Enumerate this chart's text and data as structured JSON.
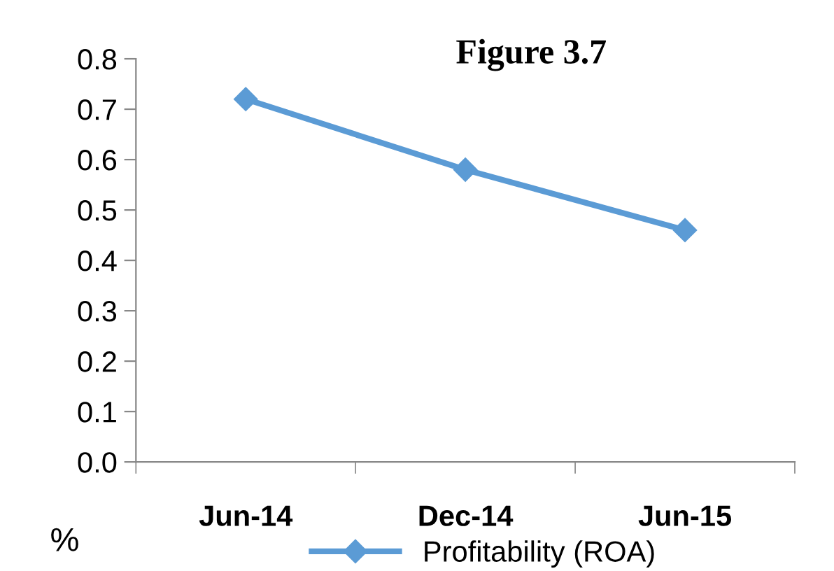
{
  "chart_data": {
    "type": "line",
    "title": "Figure 3.7",
    "ylabel": "%",
    "categories": [
      "Jun-14",
      "Dec-14",
      "Jun-15"
    ],
    "series": [
      {
        "name": "Profitability (ROA)",
        "color": "#5b9bd5",
        "values": [
          0.72,
          0.58,
          0.46
        ]
      }
    ],
    "ylim": [
      0,
      0.8
    ],
    "yticks": [
      {
        "value": 0,
        "label": "0.0"
      },
      0.1,
      0.2,
      0.3,
      0.4,
      0.5,
      0.6,
      0.7,
      0.8
    ],
    "marker": "diamond",
    "line_style": "solid",
    "grid": false,
    "legend": "bottom"
  }
}
